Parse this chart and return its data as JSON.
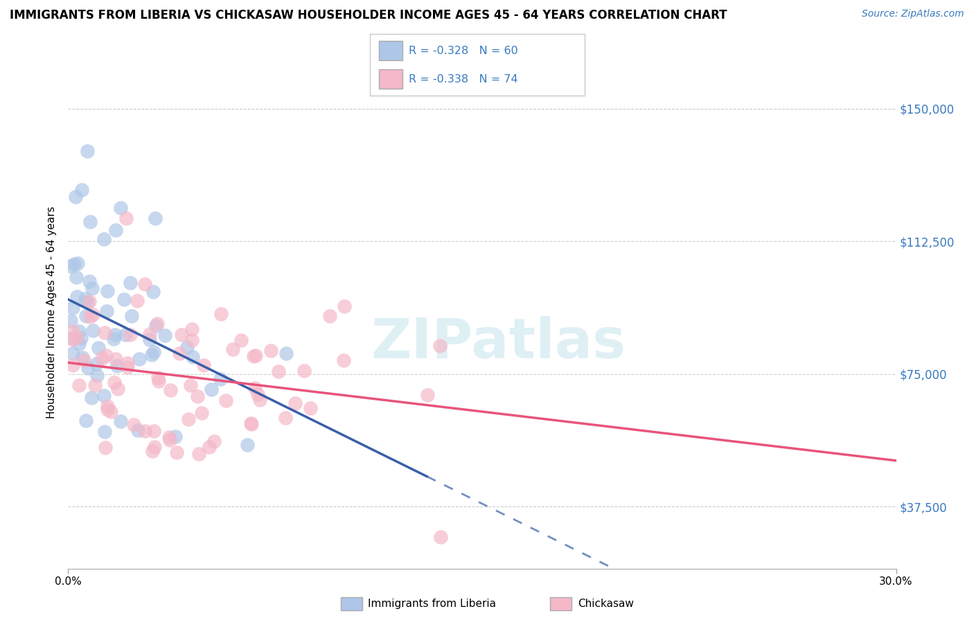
{
  "title": "IMMIGRANTS FROM LIBERIA VS CHICKASAW HOUSEHOLDER INCOME AGES 45 - 64 YEARS CORRELATION CHART",
  "source": "Source: ZipAtlas.com",
  "ylabel": "Householder Income Ages 45 - 64 years",
  "xlim": [
    0.0,
    0.3
  ],
  "ylim": [
    20000,
    165000
  ],
  "yticks": [
    37500,
    75000,
    112500,
    150000
  ],
  "ytick_labels": [
    "$37,500",
    "$75,000",
    "$112,500",
    "$150,000"
  ],
  "xtick_labels": [
    "0.0%",
    "30.0%"
  ],
  "blue_color": "#aec6e8",
  "pink_color": "#f4b8c8",
  "blue_line_color": "#3a5fa8",
  "pink_line_color": "#e8547a",
  "legend_label1": "Immigrants from Liberia",
  "legend_label2": "Chickasaw",
  "watermark": "ZIPatlas",
  "title_fontsize": 12,
  "source_fontsize": 10,
  "tick_label_color": "#3a7abf"
}
